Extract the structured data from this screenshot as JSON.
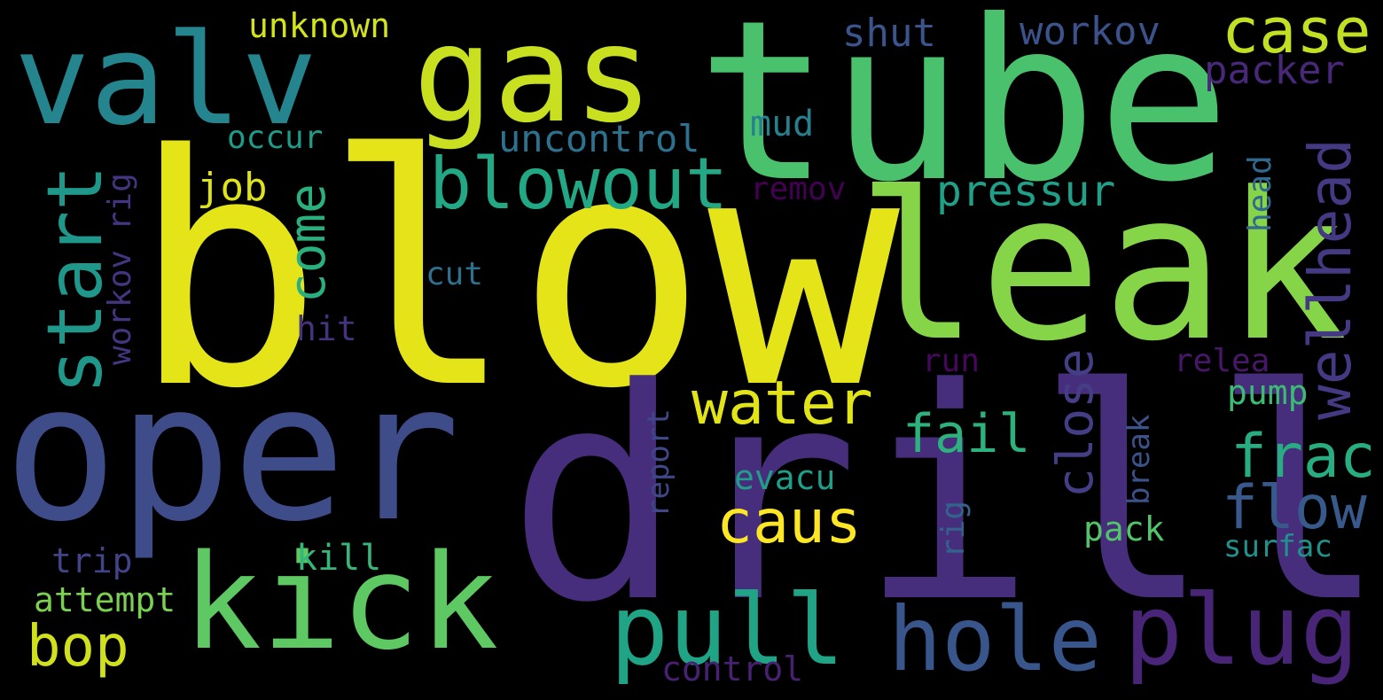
{
  "words": [
    {
      "id": "blow",
      "text": "blow",
      "color": "#e5e419",
      "orientation": "horizontal"
    },
    {
      "id": "drill",
      "text": "drill",
      "color": "#472e7c",
      "orientation": "horizontal"
    },
    {
      "id": "tube",
      "text": "tube",
      "color": "#4ac16d",
      "orientation": "horizontal"
    },
    {
      "id": "leak",
      "text": "leak",
      "color": "#86d549",
      "orientation": "horizontal"
    },
    {
      "id": "oper",
      "text": "oper",
      "color": "#3e4c8a",
      "orientation": "horizontal"
    },
    {
      "id": "gas",
      "text": "gas",
      "color": "#c8e020",
      "orientation": "horizontal"
    },
    {
      "id": "valv",
      "text": "valv",
      "color": "#25858e",
      "orientation": "horizontal"
    },
    {
      "id": "kick",
      "text": "kick",
      "color": "#5ec962",
      "orientation": "horizontal"
    },
    {
      "id": "pull",
      "text": "pull",
      "color": "#20a486",
      "orientation": "horizontal"
    },
    {
      "id": "plug",
      "text": "plug",
      "color": "#482576",
      "orientation": "horizontal"
    },
    {
      "id": "hole",
      "text": "hole",
      "color": "#39568c",
      "orientation": "horizontal"
    },
    {
      "id": "start",
      "text": "start",
      "color": "#1f988b",
      "orientation": "vertical"
    },
    {
      "id": "blowout",
      "text": "blowout",
      "color": "#22a884",
      "orientation": "horizontal"
    },
    {
      "id": "case",
      "text": "case",
      "color": "#c2df23",
      "orientation": "horizontal"
    },
    {
      "id": "wellhead",
      "text": "wellhead",
      "color": "#443983",
      "orientation": "vertical"
    },
    {
      "id": "water",
      "text": "water",
      "color": "#e2e418",
      "orientation": "horizontal"
    },
    {
      "id": "caus",
      "text": "caus",
      "color": "#fde725",
      "orientation": "horizontal"
    },
    {
      "id": "flow",
      "text": "flow",
      "color": "#38598c",
      "orientation": "horizontal"
    },
    {
      "id": "frac",
      "text": "frac",
      "color": "#27ad81",
      "orientation": "horizontal"
    },
    {
      "id": "fail",
      "text": "fail",
      "color": "#2db27d",
      "orientation": "horizontal"
    },
    {
      "id": "come",
      "text": "come",
      "color": "#2ab07f",
      "orientation": "vertical"
    },
    {
      "id": "close",
      "text": "close",
      "color": "#433e85",
      "orientation": "vertical"
    },
    {
      "id": "bop",
      "text": "bop",
      "color": "#d0e11c",
      "orientation": "horizontal"
    },
    {
      "id": "pressur",
      "text": "pressur",
      "color": "#1fa088",
      "orientation": "horizontal"
    },
    {
      "id": "workov",
      "text": "workov",
      "color": "#3b528b",
      "orientation": "horizontal"
    },
    {
      "id": "packer",
      "text": "packer",
      "color": "#482878",
      "orientation": "horizontal"
    },
    {
      "id": "shut",
      "text": "shut",
      "color": "#3a548c",
      "orientation": "horizontal"
    },
    {
      "id": "uncontrol",
      "text": "uncontrol",
      "color": "#2c728e",
      "orientation": "horizontal"
    },
    {
      "id": "job",
      "text": "job",
      "color": "#dde318",
      "orientation": "horizontal"
    },
    {
      "id": "mud",
      "text": "mud",
      "color": "#26818e",
      "orientation": "horizontal"
    },
    {
      "id": "unknown",
      "text": "unknown",
      "color": "#d2e21b",
      "orientation": "horizontal"
    },
    {
      "id": "occur",
      "text": "occur",
      "color": "#1e9c89",
      "orientation": "horizontal"
    },
    {
      "id": "workov-rig",
      "text": "workov rig",
      "color": "#453581",
      "orientation": "vertical"
    },
    {
      "id": "head",
      "text": "head",
      "color": "#30698e",
      "orientation": "vertical"
    },
    {
      "id": "remov",
      "text": "remov",
      "color": "#440154",
      "orientation": "horizontal"
    },
    {
      "id": "run",
      "text": "run",
      "color": "#46085c",
      "orientation": "horizontal"
    },
    {
      "id": "hit",
      "text": "hit",
      "color": "#46337e",
      "orientation": "horizontal"
    },
    {
      "id": "cut",
      "text": "cut",
      "color": "#2d718e",
      "orientation": "horizontal"
    },
    {
      "id": "relea",
      "text": "relea",
      "color": "#481769",
      "orientation": "horizontal"
    },
    {
      "id": "pump",
      "text": "pump",
      "color": "#3cbb75",
      "orientation": "horizontal"
    },
    {
      "id": "evacu",
      "text": "evacu",
      "color": "#1f9e89",
      "orientation": "horizontal"
    },
    {
      "id": "report",
      "text": "report",
      "color": "#3f4788",
      "orientation": "vertical"
    },
    {
      "id": "break",
      "text": "break",
      "color": "#3b528b",
      "orientation": "vertical"
    },
    {
      "id": "rig",
      "text": "rig",
      "color": "#33628d",
      "orientation": "vertical"
    },
    {
      "id": "pack",
      "text": "pack",
      "color": "#52c569",
      "orientation": "horizontal"
    },
    {
      "id": "surfac",
      "text": "surfac",
      "color": "#21918c",
      "orientation": "horizontal"
    },
    {
      "id": "kill",
      "text": "kill",
      "color": "#35b779",
      "orientation": "horizontal"
    },
    {
      "id": "trip",
      "text": "trip",
      "color": "#414487",
      "orientation": "horizontal"
    },
    {
      "id": "attempt",
      "text": "attempt",
      "color": "#7ad151",
      "orientation": "horizontal"
    },
    {
      "id": "control",
      "text": "control",
      "color": "#482173",
      "orientation": "horizontal"
    }
  ]
}
